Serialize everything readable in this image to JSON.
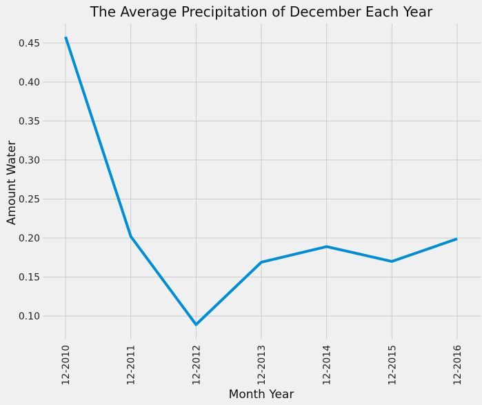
{
  "chart_data": {
    "type": "line",
    "title": "The Average Precipitation of December Each Year",
    "xlabel": "Month Year",
    "ylabel": "Amount Water",
    "categories": [
      "12-2010",
      "12-2011",
      "12-2012",
      "12-2013",
      "12-2014",
      "12-2015",
      "12-2016"
    ],
    "series": [
      {
        "values": [
          0.458,
          0.202,
          0.089,
          0.169,
          0.189,
          0.17,
          0.199
        ]
      }
    ],
    "ylim": [
      0.07,
      0.475
    ],
    "yticks": [
      "0.10",
      "0.15",
      "0.20",
      "0.25",
      "0.30",
      "0.35",
      "0.40",
      "0.45"
    ],
    "grid": true,
    "colors": {
      "line": "#008fd5",
      "background": "#f0f0f0",
      "grid": "#cbcbcb"
    }
  }
}
